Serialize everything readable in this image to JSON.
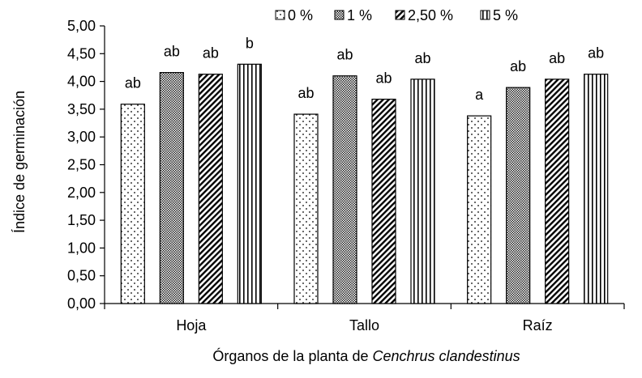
{
  "chart_data": {
    "type": "bar",
    "categories": [
      "Hoja",
      "Tallo",
      "Raíz"
    ],
    "series": [
      {
        "name": "0 %",
        "values": [
          3.59,
          3.41,
          3.38
        ],
        "labels": [
          "ab",
          "ab",
          "a"
        ],
        "pattern": "dots"
      },
      {
        "name": "1 %",
        "values": [
          4.16,
          4.1,
          3.89
        ],
        "labels": [
          "ab",
          "ab",
          "ab"
        ],
        "pattern": "checker"
      },
      {
        "name": "2,50 %",
        "values": [
          4.13,
          3.68,
          4.04
        ],
        "labels": [
          "ab",
          "ab",
          "ab"
        ],
        "pattern": "diagonal"
      },
      {
        "name": "5 %",
        "values": [
          4.31,
          4.04,
          4.13
        ],
        "labels": [
          "b",
          "ab",
          "ab"
        ],
        "pattern": "vertical"
      }
    ],
    "ylabel": "Índice de germinación",
    "xlabel_prefix": "Órganos de la planta de ",
    "xlabel_italic": "Cenchrus clandestinus",
    "ylim": [
      0,
      5
    ],
    "ytick_step": 0.5,
    "ytick_labels": [
      "0,00",
      "0,50",
      "1,00",
      "1,50",
      "2,00",
      "2,50",
      "3,00",
      "3,50",
      "4,00",
      "4,50",
      "5,00"
    ],
    "grid": false,
    "legend_position": "top"
  }
}
